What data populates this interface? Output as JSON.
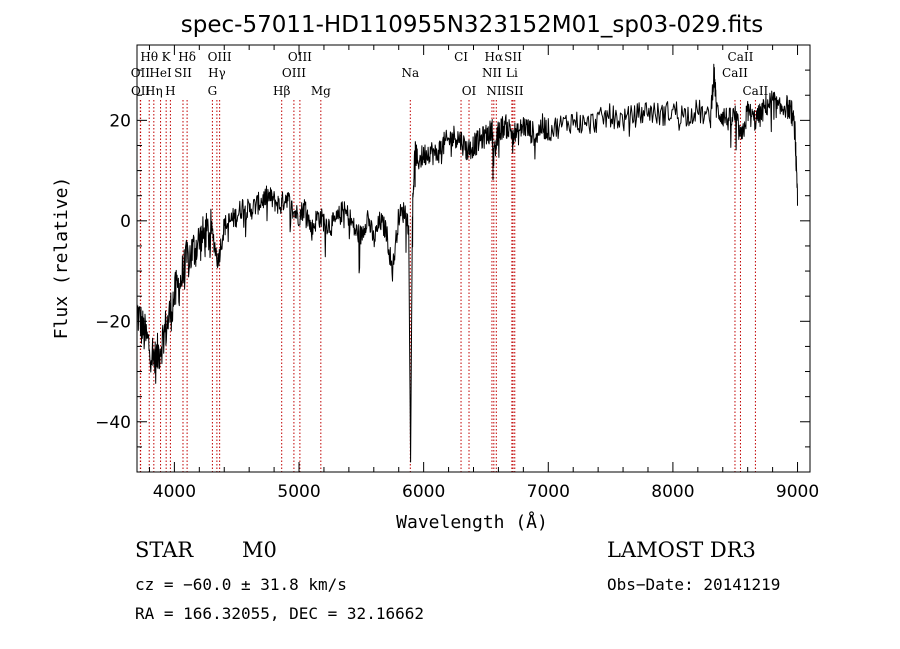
{
  "chart_data": {
    "type": "line",
    "title": "spec-57011-HD110955N323152M01_sp03-029.fits",
    "xlabel": "Wavelength (Å)",
    "ylabel": "Flux (relative)",
    "xlim": [
      3700,
      9100
    ],
    "ylim": [
      -50,
      35
    ],
    "xticks": [
      4000,
      5000,
      6000,
      7000,
      8000,
      9000
    ],
    "yticks": [
      -40,
      -20,
      0,
      20
    ],
    "series": [
      {
        "name": "spectrum",
        "x": [
          3700,
          3750,
          3800,
          3850,
          3900,
          3950,
          4000,
          4050,
          4100,
          4150,
          4200,
          4250,
          4300,
          4350,
          4400,
          4450,
          4500,
          4550,
          4600,
          4650,
          4700,
          4750,
          4800,
          4850,
          4900,
          4950,
          5000,
          5050,
          5100,
          5150,
          5200,
          5250,
          5300,
          5350,
          5400,
          5450,
          5500,
          5550,
          5600,
          5650,
          5700,
          5750,
          5800,
          5850,
          5880,
          5895,
          5910,
          5930,
          5950,
          6000,
          6050,
          6100,
          6150,
          6200,
          6250,
          6300,
          6350,
          6400,
          6450,
          6500,
          6550,
          6563,
          6600,
          6650,
          6700,
          6750,
          6800,
          6850,
          6900,
          6950,
          7000,
          7100,
          7200,
          7300,
          7400,
          7500,
          7600,
          7700,
          7800,
          7900,
          8000,
          8100,
          8200,
          8300,
          8330,
          8350,
          8400,
          8450,
          8500,
          8550,
          8600,
          8650,
          8700,
          8750,
          8800,
          8850,
          8900,
          8950,
          8980,
          9000
        ],
        "y": [
          -18,
          -22,
          -25,
          -28,
          -24,
          -20,
          -15,
          -12,
          -8,
          -6,
          -4,
          -3,
          -2,
          -8,
          -1,
          0,
          1,
          3,
          2,
          3,
          4,
          5,
          4,
          3,
          5,
          2,
          1,
          3,
          -2,
          1,
          0,
          -1,
          0,
          2,
          1,
          -2,
          -3,
          1,
          -4,
          0,
          -2,
          -10,
          1,
          2,
          -1,
          -48,
          2,
          14,
          12,
          13,
          14,
          13,
          15,
          16,
          17,
          16,
          14,
          15,
          16,
          17,
          18,
          12,
          18,
          19,
          18,
          17,
          19,
          18,
          17,
          19,
          18,
          19,
          20,
          19,
          20,
          21,
          20,
          21,
          22,
          21,
          22,
          21,
          22,
          20,
          30,
          22,
          21,
          20,
          21,
          16,
          22,
          20,
          21,
          23,
          24,
          22,
          23,
          22,
          18,
          3
        ]
      }
    ],
    "spectral_lines": [
      {
        "label": "Hθ",
        "x": 3798,
        "row": 0
      },
      {
        "label": "K",
        "x": 3934,
        "row": 0
      },
      {
        "label": "Hδ",
        "x": 4102,
        "row": 0
      },
      {
        "label": "OIII",
        "x": 4363,
        "row": 0
      },
      {
        "label": "OIII",
        "x": 5007,
        "row": 0
      },
      {
        "label": "CI",
        "x": 6300,
        "row": 0
      },
      {
        "label": "Hα",
        "x": 6563,
        "row": 0
      },
      {
        "label": "SII",
        "x": 6717,
        "row": 0
      },
      {
        "label": "CaII",
        "x": 8542,
        "row": 0
      },
      {
        "label": "OII",
        "x": 3727,
        "row": 1
      },
      {
        "label": "HeI",
        "x": 3889,
        "row": 1
      },
      {
        "label": "SII",
        "x": 4069,
        "row": 1
      },
      {
        "label": "Hγ",
        "x": 4341,
        "row": 1
      },
      {
        "label": "OIII",
        "x": 4959,
        "row": 1
      },
      {
        "label": "Na",
        "x": 5893,
        "row": 1
      },
      {
        "label": "NII",
        "x": 6548,
        "row": 1
      },
      {
        "label": "Li",
        "x": 6708,
        "row": 1
      },
      {
        "label": "CaII",
        "x": 8498,
        "row": 1
      },
      {
        "label": "OII",
        "x": 3729,
        "row": 2
      },
      {
        "label": "Hη",
        "x": 3835,
        "row": 2
      },
      {
        "label": "H",
        "x": 3968,
        "row": 2
      },
      {
        "label": "G",
        "x": 4305,
        "row": 2
      },
      {
        "label": "Hβ",
        "x": 4861,
        "row": 2
      },
      {
        "label": "Mg",
        "x": 5175,
        "row": 2
      },
      {
        "label": "OI",
        "x": 6364,
        "row": 2
      },
      {
        "label": "NII",
        "x": 6583,
        "row": 2
      },
      {
        "label": "SII",
        "x": 6731,
        "row": 2
      },
      {
        "label": "CaII",
        "x": 8662,
        "row": 2
      }
    ]
  },
  "info": {
    "object_class": "STAR",
    "subclass": "M0",
    "survey": "LAMOST DR3",
    "cz": "cz = −60.0 ± 31.8 km/s",
    "obs_date": "Obs−Date: 20141219",
    "coords": "RA = 166.32055, DEC =  32.16662"
  },
  "colors": {
    "spectrum": "#000000",
    "line_marker": "#c00000"
  }
}
